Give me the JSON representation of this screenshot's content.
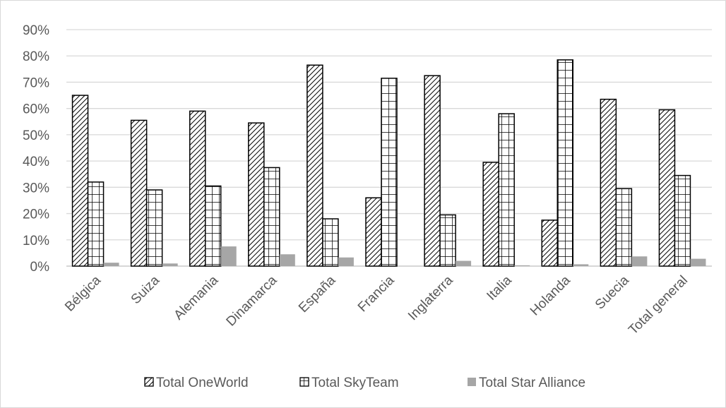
{
  "chart_data": {
    "type": "bar",
    "title": "",
    "xlabel": "",
    "ylabel": "",
    "ylim": [
      0,
      0.9
    ],
    "yticks": [
      "0%",
      "10%",
      "20%",
      "30%",
      "40%",
      "50%",
      "60%",
      "70%",
      "80%",
      "90%"
    ],
    "grid": true,
    "legend_position": "bottom",
    "categories": [
      "Bélgica",
      "Suiza",
      "Alemania",
      "Dinamarca",
      "España",
      "Francia",
      "Inglaterra",
      "Italia",
      "Holanda",
      "Suecia",
      "Total general"
    ],
    "series": [
      {
        "name": "Total OneWorld",
        "pattern": "diagonal-hatch",
        "color": "#000000",
        "values": [
          0.65,
          0.555,
          0.59,
          0.545,
          0.765,
          0.26,
          0.725,
          0.395,
          0.175,
          0.635,
          0.595
        ]
      },
      {
        "name": "Total SkyTeam",
        "pattern": "grid",
        "color": "#000000",
        "values": [
          0.32,
          0.29,
          0.305,
          0.375,
          0.18,
          0.715,
          0.195,
          0.58,
          0.785,
          0.295,
          0.345
        ]
      },
      {
        "name": "Total Star Alliance",
        "pattern": "solid",
        "color": "#a6a6a6",
        "values": [
          0.013,
          0.01,
          0.075,
          0.045,
          0.033,
          0.0,
          0.02,
          0.003,
          0.007,
          0.037,
          0.028
        ]
      }
    ]
  }
}
